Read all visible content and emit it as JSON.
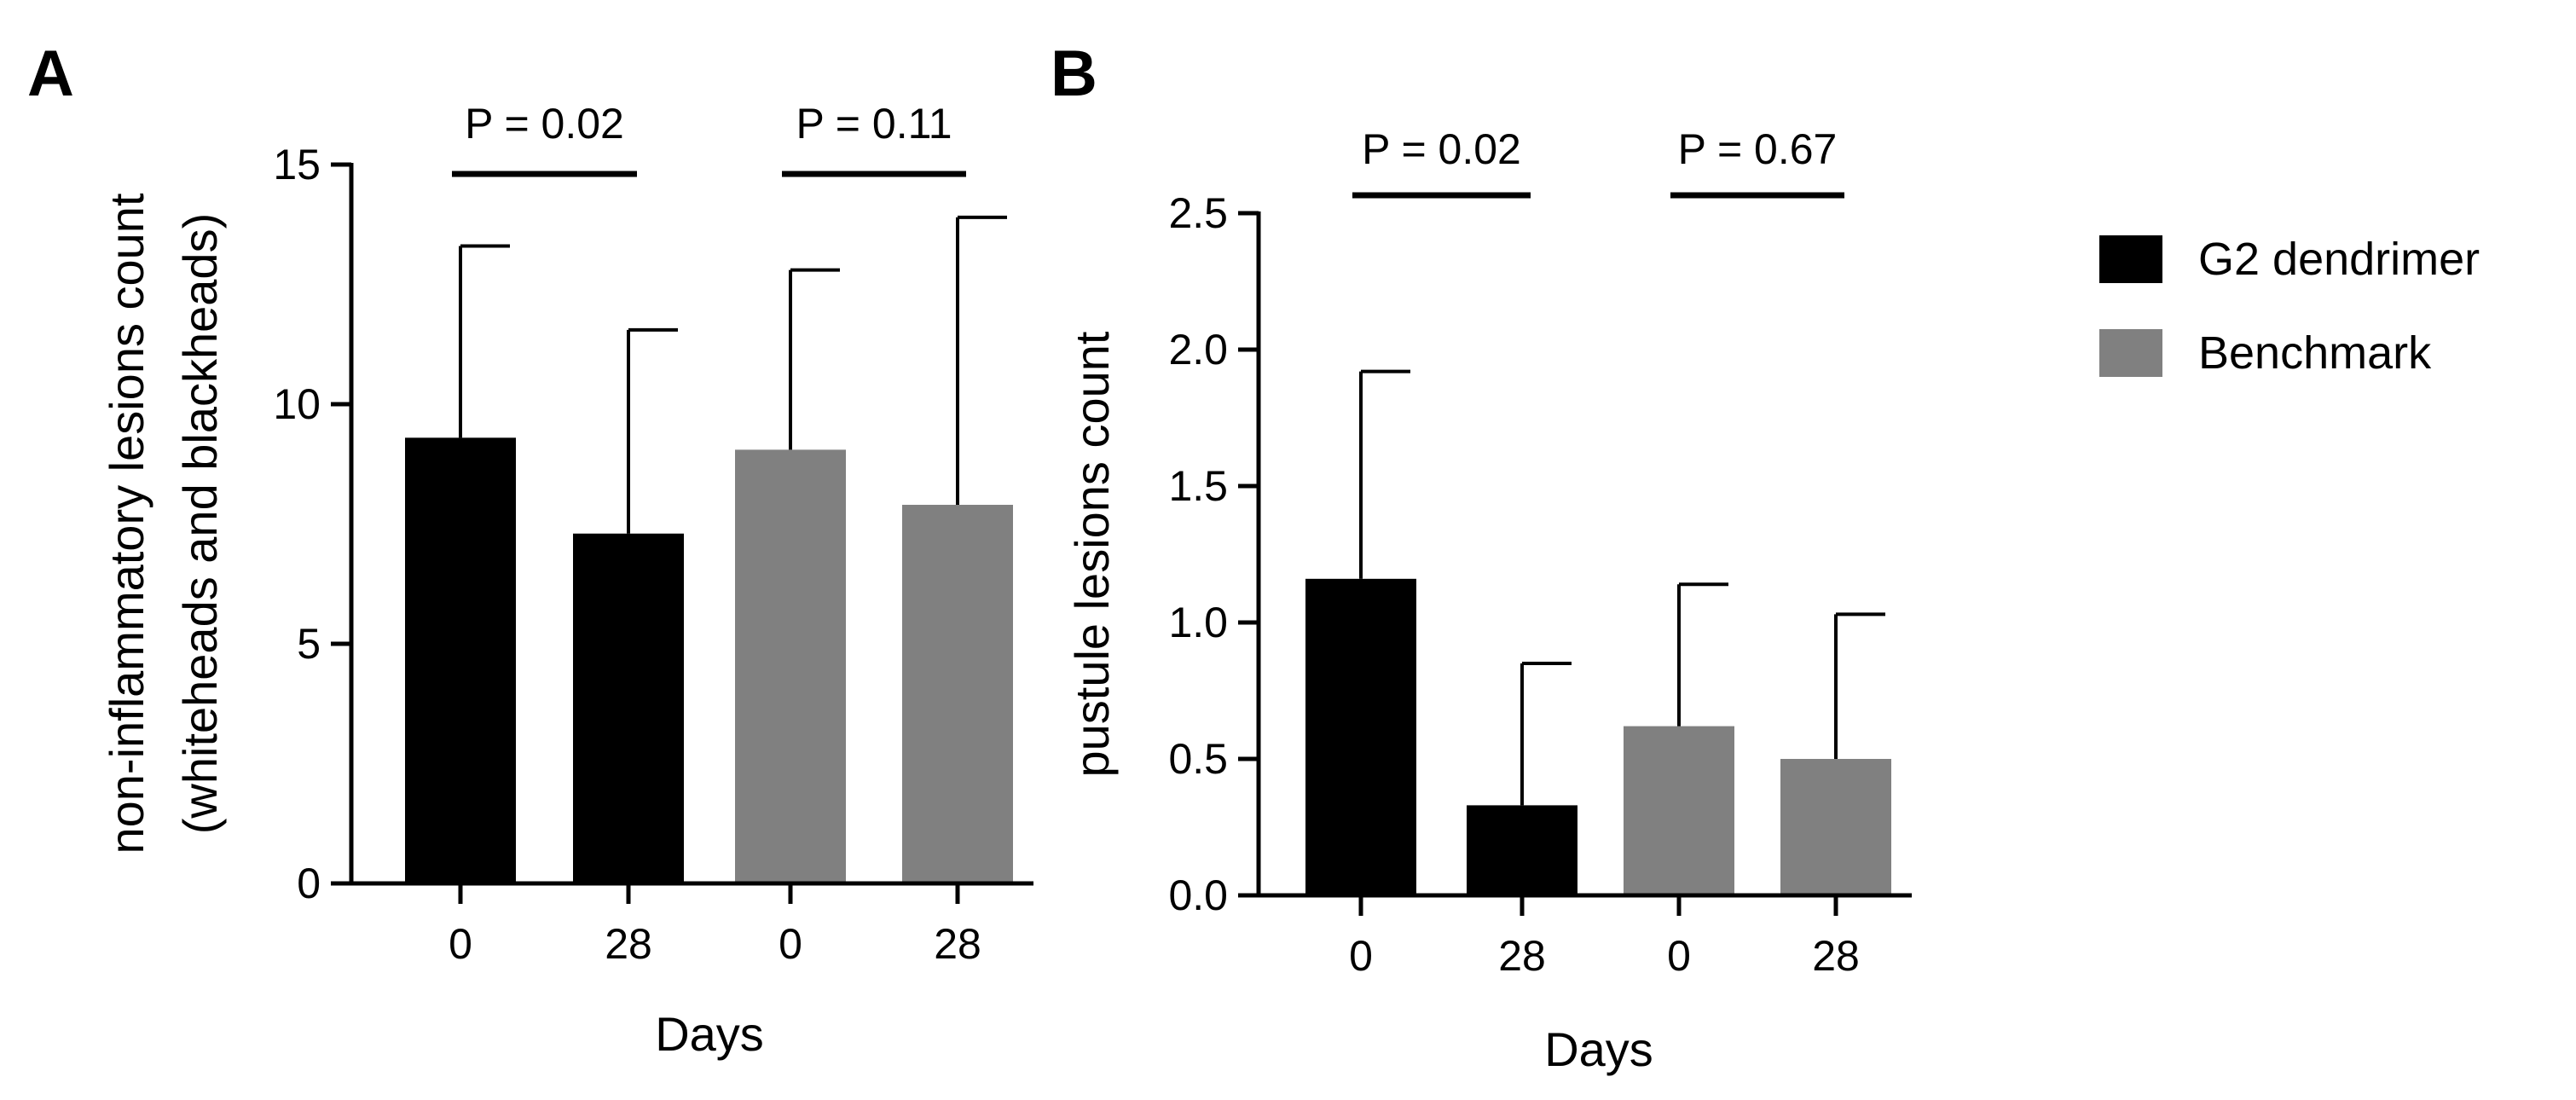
{
  "figure": {
    "panels": [
      "A",
      "B"
    ]
  },
  "colors": {
    "g2": "#000000",
    "benchmark": "#808080",
    "axis": "#000000"
  },
  "chart_data": [
    {
      "panel": "A",
      "type": "bar",
      "title": "",
      "categories": [
        "0",
        "28",
        "0",
        "28"
      ],
      "values": [
        9.3,
        7.3,
        9.05,
        7.9
      ],
      "errors": [
        4.0,
        4.25,
        3.75,
        6.0
      ],
      "bar_groups": [
        "G2 dendrimer",
        "G2 dendrimer",
        "Benchmark",
        "Benchmark"
      ],
      "xlabel": "Days",
      "ylabel": [
        "non-inflammatory lesions count",
        "(whiteheads and blackheads)"
      ],
      "ylim": [
        0,
        15
      ],
      "yticks": [
        0,
        5,
        10,
        15
      ],
      "ytick_labels": [
        "0",
        "5",
        "10",
        "15"
      ],
      "p_values": [
        {
          "label": "P = 0.02",
          "from": 0,
          "to": 1
        },
        {
          "label": "P = 0.11",
          "from": 2,
          "to": 3
        }
      ],
      "grid": false
    },
    {
      "panel": "B",
      "type": "bar",
      "title": "",
      "categories": [
        "0",
        "28",
        "0",
        "28"
      ],
      "values": [
        1.16,
        0.33,
        0.62,
        0.5
      ],
      "errors": [
        0.76,
        0.52,
        0.52,
        0.53
      ],
      "bar_groups": [
        "G2 dendrimer",
        "G2 dendrimer",
        "Benchmark",
        "Benchmark"
      ],
      "xlabel": "Days",
      "ylabel": [
        "pustule lesions count"
      ],
      "ylim": [
        0,
        2.5
      ],
      "yticks": [
        0,
        0.5,
        1.0,
        1.5,
        2.0,
        2.5
      ],
      "ytick_labels": [
        "0.0",
        "0.5",
        "1.0",
        "1.5",
        "2.0",
        "2.5"
      ],
      "p_values": [
        {
          "label": "P = 0.02",
          "from": 0,
          "to": 1
        },
        {
          "label": "P = 0.67",
          "from": 2,
          "to": 3
        }
      ],
      "grid": false
    }
  ],
  "legend": {
    "position": "right",
    "entries": [
      {
        "label": "G2 dendrimer",
        "color": "#000000"
      },
      {
        "label": "Benchmark",
        "color": "#808080"
      }
    ]
  }
}
